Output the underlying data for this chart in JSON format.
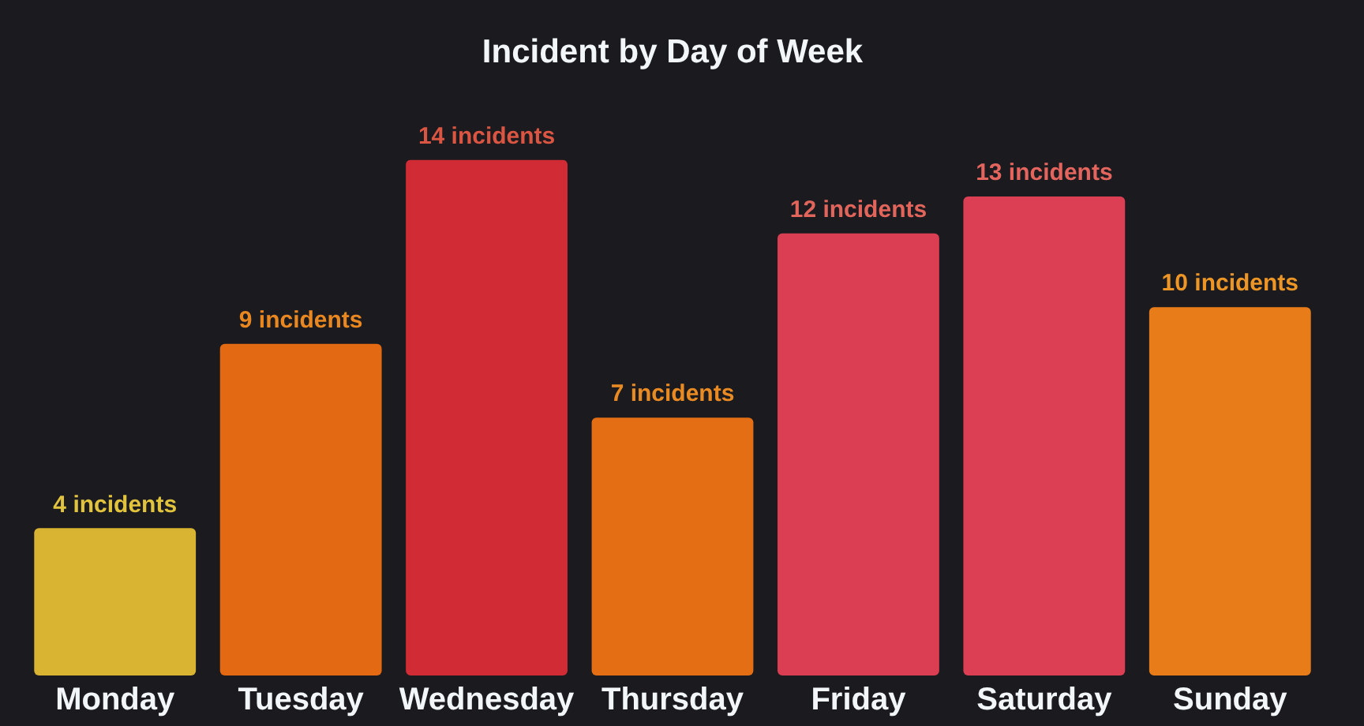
{
  "chart_data": {
    "type": "bar",
    "title": "Incident by Day of Week",
    "categories": [
      "Monday",
      "Tuesday",
      "Wednesday",
      "Thursday",
      "Friday",
      "Saturday",
      "Sunday"
    ],
    "values": [
      4,
      9,
      14,
      7,
      12,
      13,
      10
    ],
    "colors": [
      "#d9b432",
      "#e36a12",
      "#d12b36",
      "#e36e14",
      "#db3e52",
      "#dc3f53",
      "#e87c18"
    ],
    "value_labels": [
      "4 incidents",
      "9 incidents",
      "14 incidents",
      "7 incidents",
      "12 incidents",
      "13 incidents",
      "10 incidents"
    ],
    "tick_labels": "x"
  }
}
